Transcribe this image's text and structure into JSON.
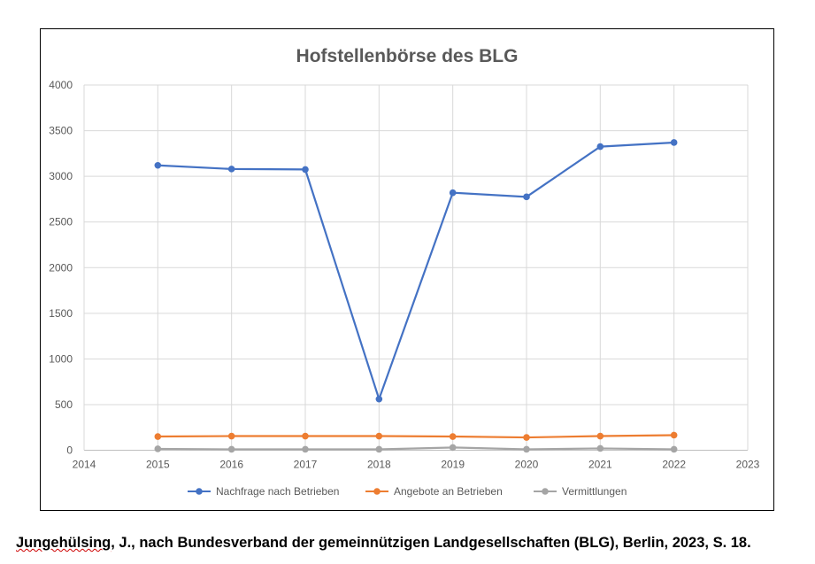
{
  "chart_data": {
    "type": "line",
    "title": "Hofstellenbörse des BLG",
    "xlabel": "",
    "ylabel": "",
    "xlim": [
      2014,
      2023
    ],
    "ylim": [
      0,
      4000
    ],
    "x_ticks": [
      2014,
      2015,
      2016,
      2017,
      2018,
      2019,
      2020,
      2021,
      2022,
      2023
    ],
    "y_ticks": [
      0,
      500,
      1000,
      1500,
      2000,
      2500,
      3000,
      3500,
      4000
    ],
    "grid": true,
    "legend_position": "bottom",
    "x": [
      2015,
      2016,
      2017,
      2018,
      2019,
      2020,
      2021,
      2022
    ],
    "series": [
      {
        "name": "Nachfrage nach Betrieben",
        "color": "#4472C4",
        "values": [
          3120,
          3080,
          3075,
          560,
          2820,
          2775,
          3325,
          3370
        ]
      },
      {
        "name": "Angebote an Betrieben",
        "color": "#ED7D31",
        "values": [
          150,
          155,
          155,
          155,
          150,
          140,
          155,
          165
        ]
      },
      {
        "name": "Vermittlungen",
        "color": "#A5A5A5",
        "values": [
          15,
          10,
          10,
          10,
          30,
          10,
          20,
          10
        ]
      }
    ]
  },
  "caption": {
    "word": "Jungehülsing",
    "rest": ", J., nach Bundesverband der gemeinnützigen Landgesellschaften (BLG), Berlin, 2023, S. 18."
  }
}
